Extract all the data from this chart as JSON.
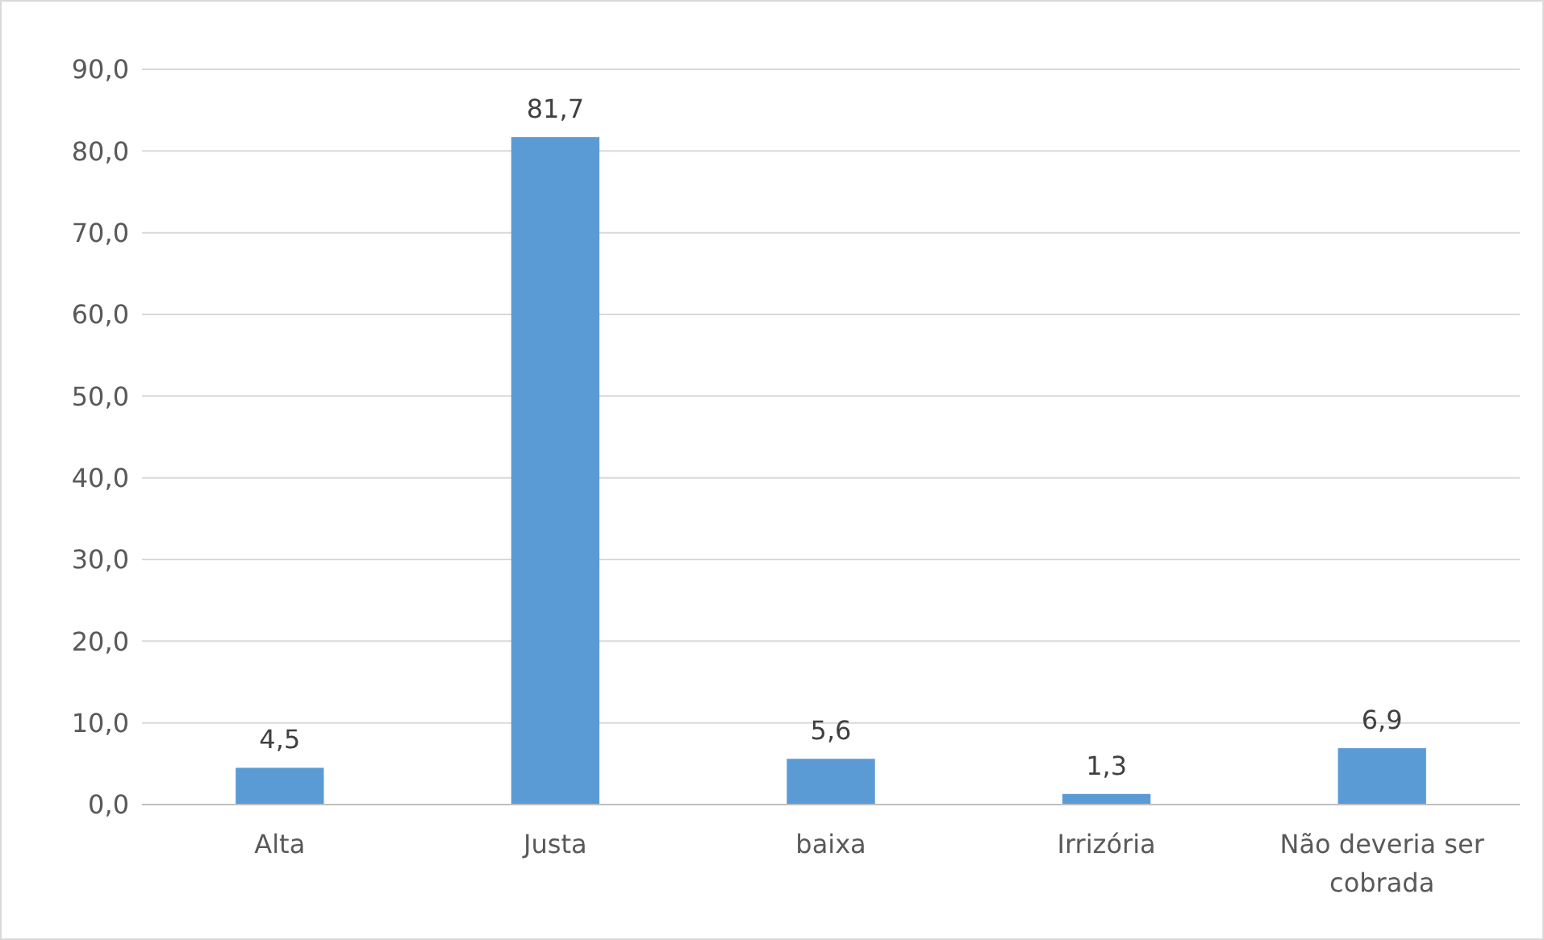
{
  "chart_data": {
    "type": "bar",
    "categories": [
      "Alta",
      "Justa",
      "baixa",
      "Irrizória",
      "Não deveria ser cobrada"
    ],
    "values": [
      4.5,
      81.7,
      5.6,
      1.3,
      6.9
    ],
    "color": "#5b9bd5",
    "value_labels": [
      "4,5",
      "81,7",
      "5,6",
      "1,3",
      "6,9"
    ],
    "ylim": [
      0,
      90
    ],
    "yticks": [
      {
        "value": 0,
        "label": "0,0"
      },
      {
        "value": 10,
        "label": "10,0"
      },
      {
        "value": 20,
        "label": "20,0"
      },
      {
        "value": 30,
        "label": "30,0"
      },
      {
        "value": 40,
        "label": "40,0"
      },
      {
        "value": 50,
        "label": "50,0"
      },
      {
        "value": 60,
        "label": "60,0"
      },
      {
        "value": 70,
        "label": "70,0"
      },
      {
        "value": 80,
        "label": "80,0"
      },
      {
        "value": 90,
        "label": "90,0"
      }
    ],
    "grid": "y"
  }
}
